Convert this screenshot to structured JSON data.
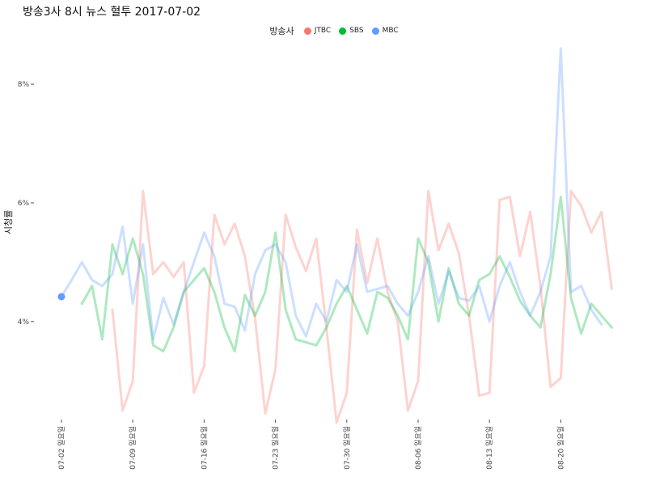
{
  "chart_data": {
    "type": "line",
    "title": "방송3사 8시 뉴스 혈투 2017-07-02",
    "ylabel": "시청률",
    "legend_title": "방송사",
    "legend_placement": "top",
    "ylim": [
      2.2,
      8.9
    ],
    "y_ticks": [
      4,
      6,
      8
    ],
    "y_tick_labels": [
      "4%",
      "6%",
      "8%"
    ],
    "x_tick_labels": [
      "07-02 일요일",
      "07-09 일요일",
      "07-16 일요일",
      "07-23 일요일",
      "07-30 일요일",
      "08-06 일요일",
      "08-13 일요일",
      "08-20 일요일"
    ],
    "x_tick_index": [
      0,
      7,
      14,
      21,
      28,
      35,
      42,
      49
    ],
    "n_days": 55,
    "highlight": {
      "series": "MBC",
      "index": 0,
      "value": 4.42
    },
    "series": [
      {
        "name": "JTBC",
        "color": "#f8766d",
        "start": 5,
        "values": [
          4.2,
          2.5,
          3.0,
          6.2,
          4.8,
          5.0,
          4.75,
          5.0,
          2.8,
          3.25,
          5.8,
          5.3,
          5.65,
          5.1,
          4.05,
          2.45,
          3.2,
          5.8,
          5.25,
          4.85,
          5.4,
          3.9,
          2.3,
          2.8,
          5.55,
          4.65,
          5.4,
          4.5,
          4.0,
          2.5,
          3.0,
          6.2,
          5.2,
          5.65,
          5.15,
          4.1,
          2.75,
          2.8,
          6.05,
          6.1,
          5.1,
          5.85,
          4.6,
          2.9,
          3.05,
          6.2,
          5.95,
          5.5,
          5.85,
          4.55
        ]
      },
      {
        "name": "SBS",
        "color": "#00ba38",
        "start": 2,
        "values": [
          4.3,
          4.6,
          3.7,
          5.3,
          4.8,
          5.4,
          4.8,
          3.6,
          3.5,
          3.9,
          4.5,
          4.7,
          4.9,
          4.5,
          3.9,
          3.5,
          4.45,
          4.1,
          4.5,
          5.5,
          4.2,
          3.7,
          3.65,
          3.6,
          3.9,
          4.3,
          4.6,
          4.2,
          3.8,
          4.5,
          4.4,
          4.1,
          3.7,
          5.4,
          5.0,
          4.0,
          4.9,
          4.3,
          4.1,
          4.7,
          4.8,
          5.1,
          4.75,
          4.35,
          4.1,
          3.9,
          4.8,
          6.1,
          4.4,
          3.8,
          4.3,
          4.1,
          3.9
        ]
      },
      {
        "name": "MBC",
        "color": "#619cff",
        "start": 0,
        "values": [
          4.42,
          4.7,
          5.0,
          4.7,
          4.6,
          4.8,
          5.6,
          4.3,
          5.3,
          3.7,
          4.4,
          3.95,
          4.5,
          5.0,
          5.5,
          5.1,
          4.3,
          4.25,
          3.85,
          4.8,
          5.2,
          5.3,
          5.0,
          4.1,
          3.75,
          4.3,
          4.0,
          4.7,
          4.5,
          5.3,
          4.5,
          4.55,
          4.6,
          4.3,
          4.1,
          4.5,
          5.1,
          4.3,
          4.85,
          4.4,
          4.35,
          4.6,
          4.0,
          4.6,
          5.0,
          4.5,
          4.1,
          4.5,
          5.1,
          8.6,
          4.5,
          4.6,
          4.2,
          3.95
        ]
      }
    ]
  }
}
